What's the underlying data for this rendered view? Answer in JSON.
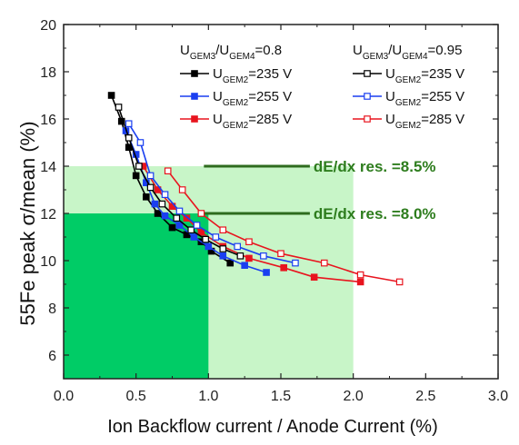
{
  "chart_data": {
    "type": "line",
    "xlabel": "Ion Backflow current / Anode Current  (%)",
    "ylabel": "55Fe peak σ/mean (%)",
    "xlim": [
      0.0,
      3.0
    ],
    "ylim": [
      5,
      20
    ],
    "x_ticks": [
      "0.0",
      "0.5",
      "1.0",
      "1.5",
      "2.0",
      "2.5",
      "3.0"
    ],
    "y_ticks": [
      "6",
      "8",
      "10",
      "12",
      "14",
      "16",
      "18",
      "20"
    ],
    "grid": false,
    "legend_position": "top-right",
    "legend_headers": [
      {
        "main": "U",
        "sub1": "GEM3",
        "mid": "/U",
        "sub2": "GEM4",
        "tail": "=0.8"
      },
      {
        "main": "U",
        "sub1": "GEM3",
        "mid": "/U",
        "sub2": "GEM4",
        "tail": "=0.95"
      }
    ],
    "regions": [
      {
        "x": [
          0.0,
          2.0
        ],
        "y": [
          5,
          14
        ],
        "color": "#c8f5c8"
      },
      {
        "x": [
          0.0,
          1.0
        ],
        "y": [
          5,
          12
        ],
        "color": "#00cc66"
      }
    ],
    "annotations": [
      {
        "text": "dE/dx res. =8.5%",
        "y": 14.0,
        "x_start": 1.0,
        "x_end": 1.65
      },
      {
        "text": "dE/dx res. =8.0%",
        "y": 12.0,
        "x_start": 1.0,
        "x_end": 1.65
      }
    ],
    "series": [
      {
        "name": "UGEM2=235 V",
        "label_main": "U",
        "label_sub": "GEM2",
        "label_tail": "=235 V",
        "group": "0.8",
        "color": "#000000",
        "filled": true,
        "x": [
          0.33,
          0.4,
          0.45,
          0.5,
          0.57,
          0.65,
          0.75,
          0.85,
          0.95,
          1.02,
          1.15
        ],
        "y": [
          17.0,
          15.9,
          14.8,
          13.6,
          12.7,
          12.0,
          11.4,
          11.1,
          10.8,
          10.4,
          9.9
        ]
      },
      {
        "name": "UGEM2=255 V",
        "label_main": "U",
        "label_sub": "GEM2",
        "label_tail": "=255 V",
        "group": "0.8",
        "color": "#1a3ff0",
        "filled": true,
        "x": [
          0.43,
          0.5,
          0.57,
          0.63,
          0.7,
          0.8,
          0.9,
          1.0,
          1.1,
          1.25,
          1.4
        ],
        "y": [
          15.5,
          14.5,
          13.3,
          12.4,
          11.9,
          11.5,
          11.0,
          10.6,
          10.2,
          9.8,
          9.5
        ]
      },
      {
        "name": "UGEM2=285 V",
        "label_main": "U",
        "label_sub": "GEM2",
        "label_tail": "=285 V",
        "group": "0.8",
        "color": "#e8141e",
        "filled": true,
        "x": [
          0.55,
          0.65,
          0.75,
          0.85,
          0.95,
          1.1,
          1.28,
          1.52,
          1.73,
          2.05
        ],
        "y": [
          14.0,
          13.0,
          12.3,
          11.8,
          11.2,
          10.6,
          10.1,
          9.7,
          9.3,
          9.1
        ]
      },
      {
        "name": "UGEM2=235 V",
        "label_main": "U",
        "label_sub": "GEM2",
        "label_tail": "=235 V",
        "group": "0.95",
        "color": "#000000",
        "filled": false,
        "x": [
          0.38,
          0.45,
          0.52,
          0.6,
          0.68,
          0.78,
          0.88,
          0.98,
          1.1,
          1.22
        ],
        "y": [
          16.5,
          15.2,
          14.0,
          13.1,
          12.4,
          11.8,
          11.3,
          10.9,
          10.5,
          10.2
        ]
      },
      {
        "name": "UGEM2=255 V",
        "label_main": "U",
        "label_sub": "GEM2",
        "label_tail": "=255 V",
        "group": "0.95",
        "color": "#1a3ff0",
        "filled": false,
        "x": [
          0.45,
          0.53,
          0.6,
          0.7,
          0.8,
          0.92,
          1.05,
          1.2,
          1.38,
          1.6
        ],
        "y": [
          15.8,
          15.0,
          13.6,
          12.8,
          12.1,
          11.5,
          11.0,
          10.6,
          10.2,
          9.9
        ]
      },
      {
        "name": "UGEM2=285 V",
        "label_main": "U",
        "label_sub": "GEM2",
        "label_tail": "=285 V",
        "group": "0.95",
        "color": "#e8141e",
        "filled": false,
        "x": [
          0.72,
          0.82,
          0.95,
          1.1,
          1.28,
          1.5,
          1.8,
          2.05,
          2.32
        ],
        "y": [
          13.8,
          13.0,
          12.0,
          11.3,
          10.8,
          10.3,
          9.9,
          9.4,
          9.1
        ]
      }
    ]
  }
}
